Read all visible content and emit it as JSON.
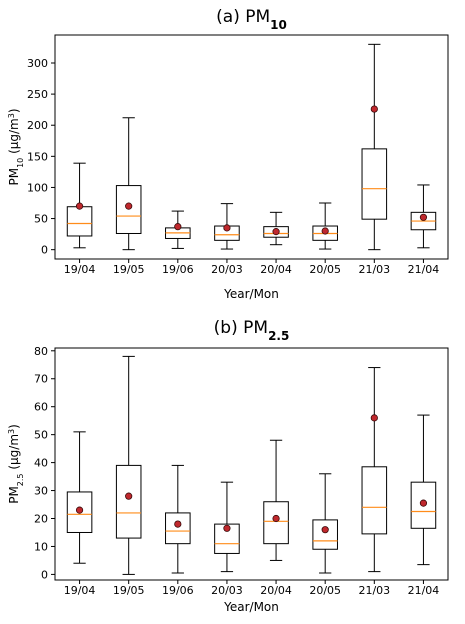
{
  "chart_data": [
    {
      "type": "box",
      "title_prefix": "(a) PM",
      "title_sub": "10",
      "xlabel": "Year/Mon",
      "ylabel_prefix": "PM",
      "ylabel_sub": "10",
      "ylabel_unit_start": " (μg/m",
      "ylabel_unit_sup": "3",
      "ylabel_unit_end": ")",
      "ylim": [
        -15,
        345
      ],
      "yticks": [
        0,
        50,
        100,
        150,
        200,
        250,
        300
      ],
      "categories": [
        "19/04",
        "19/05",
        "19/06",
        "20/03",
        "20/04",
        "20/05",
        "21/03",
        "21/04"
      ],
      "boxes": [
        {
          "min": 3,
          "q1": 22,
          "median": 42,
          "q3": 69,
          "max": 139,
          "mean": 70
        },
        {
          "min": 0,
          "q1": 26,
          "median": 54,
          "q3": 103,
          "max": 212,
          "mean": 70
        },
        {
          "min": 2,
          "q1": 18,
          "median": 27,
          "q3": 35,
          "max": 62,
          "mean": 37
        },
        {
          "min": 1,
          "q1": 15,
          "median": 24,
          "q3": 38,
          "max": 74,
          "mean": 35
        },
        {
          "min": 8,
          "q1": 20,
          "median": 26,
          "q3": 37,
          "max": 60,
          "mean": 29
        },
        {
          "min": 1,
          "q1": 15,
          "median": 26,
          "q3": 38,
          "max": 75,
          "mean": 30
        },
        {
          "min": 0,
          "q1": 49,
          "median": 98,
          "q3": 162,
          "max": 330,
          "mean": 226
        },
        {
          "min": 3,
          "q1": 32,
          "median": 46,
          "q3": 60,
          "max": 104,
          "mean": 52
        }
      ]
    },
    {
      "type": "box",
      "title_prefix": "(b) PM",
      "title_sub": "2.5",
      "xlabel": "Year/Mon",
      "ylabel_prefix": "PM",
      "ylabel_sub": "2.5",
      "ylabel_unit_start": " (μg/m",
      "ylabel_unit_sup": "3",
      "ylabel_unit_end": ")",
      "ylim": [
        -2,
        81
      ],
      "yticks": [
        0,
        10,
        20,
        30,
        40,
        50,
        60,
        70,
        80
      ],
      "categories": [
        "19/04",
        "19/05",
        "19/06",
        "20/03",
        "20/04",
        "20/05",
        "21/03",
        "21/04"
      ],
      "boxes": [
        {
          "min": 4,
          "q1": 15,
          "median": 21.5,
          "q3": 29.5,
          "max": 51,
          "mean": 23
        },
        {
          "min": 0,
          "q1": 13,
          "median": 22,
          "q3": 39,
          "max": 78,
          "mean": 28
        },
        {
          "min": 0.5,
          "q1": 11,
          "median": 15.5,
          "q3": 22,
          "max": 39,
          "mean": 18
        },
        {
          "min": 1,
          "q1": 7.5,
          "median": 11,
          "q3": 18,
          "max": 33,
          "mean": 16.5
        },
        {
          "min": 5,
          "q1": 11,
          "median": 19,
          "q3": 26,
          "max": 48,
          "mean": 20
        },
        {
          "min": 0.5,
          "q1": 9,
          "median": 12,
          "q3": 19.5,
          "max": 36,
          "mean": 16
        },
        {
          "min": 1,
          "q1": 14.5,
          "median": 24,
          "q3": 38.5,
          "max": 74,
          "mean": 56
        },
        {
          "min": 3.5,
          "q1": 16.5,
          "median": 22.5,
          "q3": 33,
          "max": 57,
          "mean": 25.5
        }
      ]
    }
  ],
  "colors": {
    "box": "#000000",
    "median": "#ff8c1a",
    "mean_fill": "#c0282d",
    "mean_edge": "#3a0a0a"
  }
}
